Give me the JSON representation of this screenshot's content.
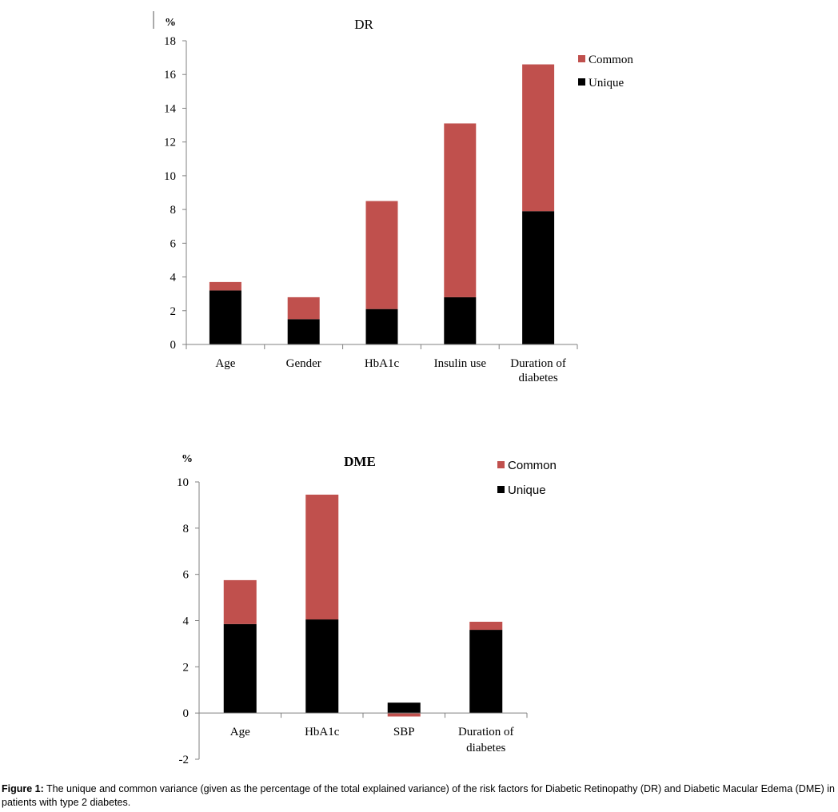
{
  "colors": {
    "unique": "#000000",
    "common": "#c0504d",
    "axis": "#808080"
  },
  "chart_data": [
    {
      "type": "bar",
      "stacked": true,
      "title": "DR",
      "ylabel": "%",
      "ylim": [
        0,
        18
      ],
      "yticks": [
        "0",
        "2",
        "4",
        "6",
        "8",
        "10",
        "12",
        "14",
        "16",
        "18"
      ],
      "categories": [
        [
          "Age"
        ],
        [
          "Gender"
        ],
        [
          "HbA1c"
        ],
        [
          "Insulin use"
        ],
        [
          "Duration of",
          "diabetes"
        ]
      ],
      "series": [
        {
          "name": "Unique",
          "values": [
            3.2,
            1.5,
            2.1,
            2.8,
            7.9
          ]
        },
        {
          "name": "Common",
          "values": [
            0.5,
            1.3,
            6.4,
            10.3,
            8.7
          ]
        }
      ],
      "legend": {
        "position": "top-right",
        "order": [
          "Common",
          "Unique"
        ]
      },
      "grid": false
    },
    {
      "type": "bar",
      "stacked": true,
      "title": "DME",
      "ylabel": "%",
      "ylim": [
        -2,
        10
      ],
      "yticks": [
        "-2",
        "0",
        "2",
        "4",
        "6",
        "8",
        "10"
      ],
      "categories": [
        [
          "Age"
        ],
        [
          "HbA1c"
        ],
        [
          "SBP"
        ],
        [
          "Duration of",
          "diabetes"
        ]
      ],
      "series": [
        {
          "name": "Unique",
          "values": [
            3.85,
            4.05,
            0.45,
            3.6
          ]
        },
        {
          "name": "Common",
          "values": [
            1.9,
            5.4,
            -0.15,
            0.35
          ]
        }
      ],
      "legend": {
        "position": "top-right",
        "order": [
          "Common",
          "Unique"
        ]
      },
      "grid": false
    }
  ],
  "caption": {
    "label": "Figure 1:",
    "text": " The unique and common variance (given as the percentage of the total explained variance) of the risk factors for Diabetic Retinopathy (DR) and Diabetic Macular Edema (DME) in patients with type 2 diabetes."
  }
}
